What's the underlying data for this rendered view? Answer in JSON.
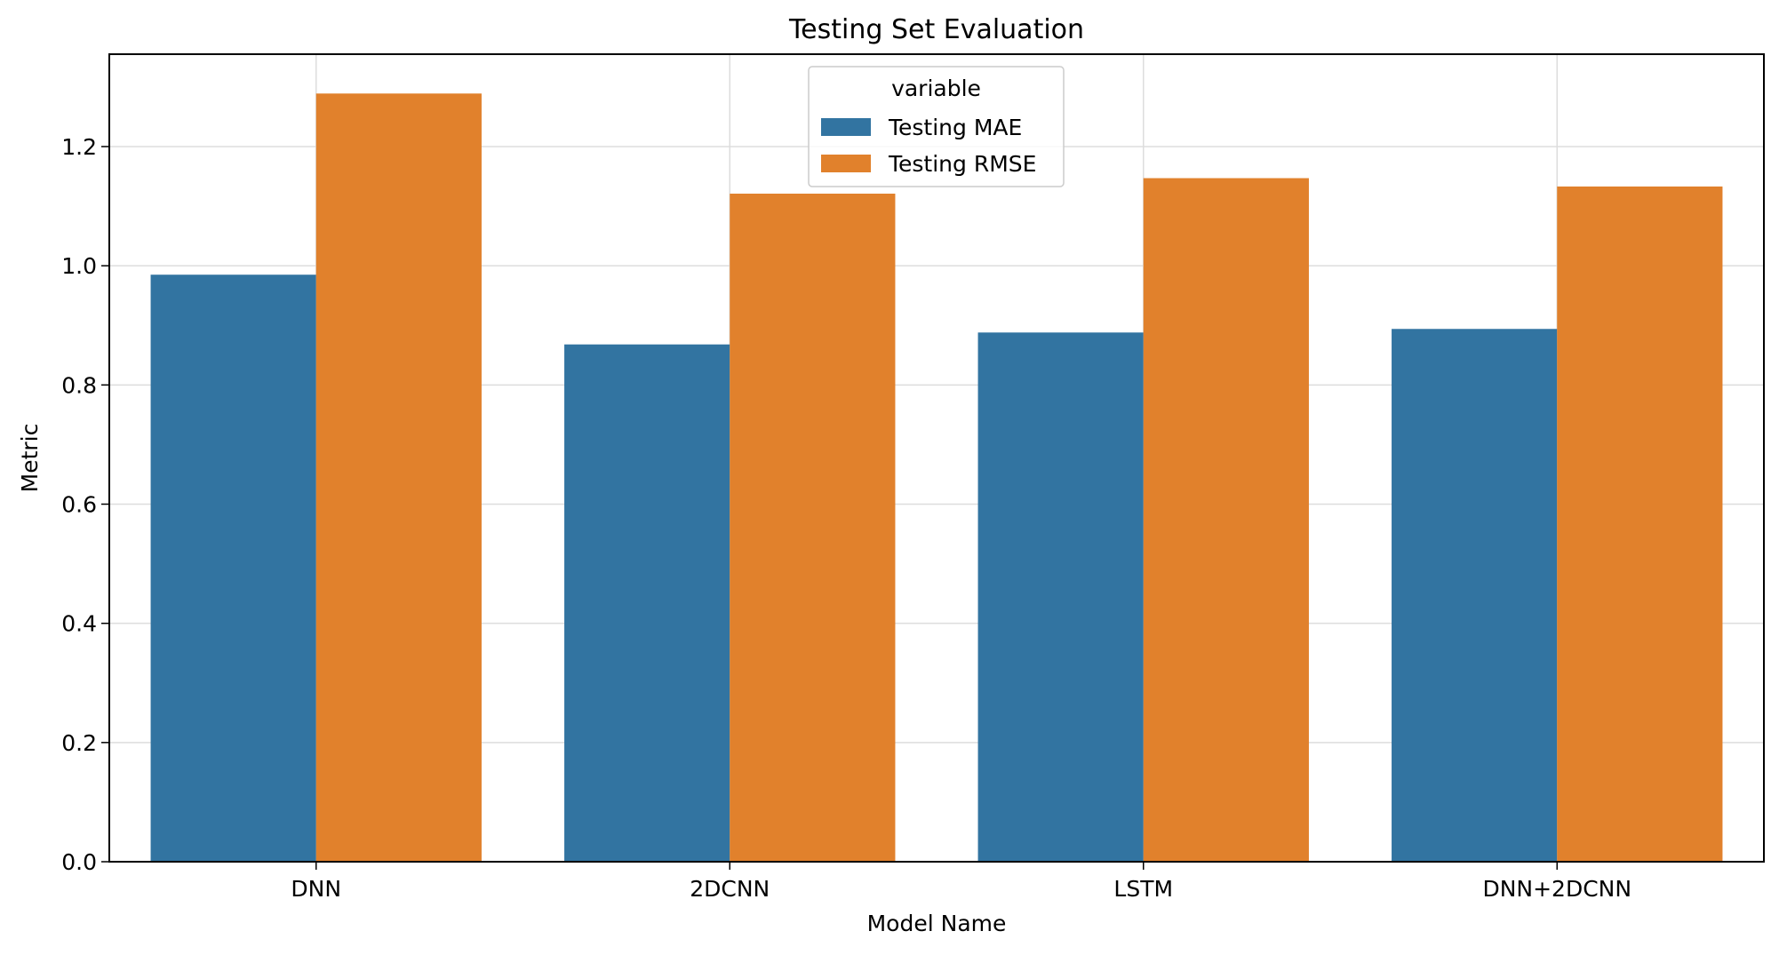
{
  "chart_data": {
    "type": "bar",
    "title": "Testing Set Evaluation",
    "xlabel": "Model Name",
    "ylabel": "Metric",
    "categories": [
      "DNN",
      "2DCNN",
      "LSTM",
      "DNN+2DCNN"
    ],
    "series": [
      {
        "name": "Testing MAE",
        "values": [
          0.985,
          0.868,
          0.888,
          0.894
        ],
        "color": "#3274a1"
      },
      {
        "name": "Testing RMSE",
        "values": [
          1.289,
          1.121,
          1.147,
          1.133
        ],
        "color": "#e1812c"
      }
    ],
    "ylim": [
      0,
      1.355
    ],
    "yticks": [
      "0.0",
      "0.2",
      "0.4",
      "0.6",
      "0.8",
      "1.0",
      "1.2"
    ],
    "grid": true,
    "legend": {
      "title": "variable",
      "placement": "top-center"
    }
  }
}
